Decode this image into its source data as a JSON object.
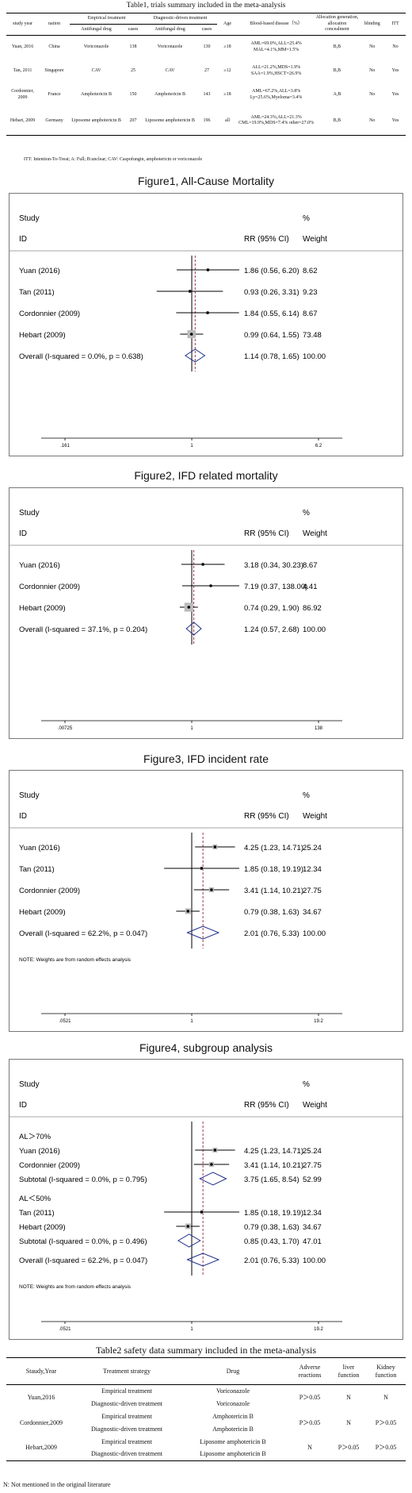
{
  "table1": {
    "title": "Table1, trials summary included in the meta-analysis",
    "headers": {
      "study_year": "study year",
      "nation": "nation",
      "empirical": "Empirical treatment",
      "diagnostic": "Diagnostic-driven treatment",
      "antifungal_drug": "Antifungal drug",
      "cases": "cases",
      "age": "Age",
      "blood": "Blood-based disease（%）",
      "allocation": "Allocation generation, allocation concealment",
      "blinding": "blinding",
      "itt": "ITT"
    },
    "rows": [
      {
        "study": "Yuan, 2016",
        "nation": "China",
        "emp_drug": "Voriconazole",
        "emp_cases": "138",
        "diag_drug": "Voriconazole",
        "diag_cases": "130",
        "age": "≥18",
        "blood": "AML=69.0%,ALL=25.4% MAL=4.1%,MM=1.5%",
        "alloc": "B,B",
        "blinding": "No",
        "itt": "No"
      },
      {
        "study": "Tan, 2011",
        "nation": "Singapore",
        "emp_drug": "CAV",
        "emp_cases": "25",
        "diag_drug": "CAV",
        "diag_cases": "27",
        "age": "≥12",
        "blood": "ALL=21.2%,MDS=1.9% SAA=1.9%,HSCT=26.9%",
        "alloc": "B,B",
        "blinding": "No",
        "itt": "Yes"
      },
      {
        "study": "Cordonnier, 2009",
        "nation": "France",
        "emp_drug": "Amphotericin B",
        "emp_cases": "150",
        "diag_drug": "Amphotericin B",
        "diag_cases": "143",
        "age": "≥18",
        "blood": "AML=67.2%,ALL=3.8% Ly=25.6%,Myeloma=3.4%",
        "alloc": "A,B",
        "blinding": "No",
        "itt": "Yes"
      },
      {
        "study": "Hebart, 2009",
        "nation": "Germany",
        "emp_drug": "Liposome amphotericin B",
        "emp_cases": "207",
        "diag_drug": "Liposome amphotericin B",
        "diag_cases": "196",
        "age": "all",
        "blood": "AML=24.3%,ALL=21.3% CML=19.9%,MDS=7.4% other=27.0%",
        "alloc": "B,B",
        "blinding": "No",
        "itt": "Yes"
      }
    ],
    "footnote": "ITT: Intention-To-Treat; A: Full; B:unclear; CAV: Caspofungin, amphotericin or voriconazole"
  },
  "figures": [
    {
      "caption": "Figure1, All-Cause Mortality",
      "col_study": "Study",
      "col_id": "ID",
      "col_rr": "RR (95% CI)",
      "col_pct": "%",
      "col_weight": "Weight",
      "axis": {
        "min": 0.161,
        "max": 6.2,
        "ticks": [
          ".161",
          "1",
          "6.2"
        ],
        "null": 1,
        "overall": 1.14
      },
      "note": "",
      "groups": [
        {
          "label": "",
          "rows": [
            {
              "study": "Yuan (2016)",
              "rr": 1.86,
              "lo": 0.56,
              "hi": 6.2,
              "text": "1.86 (0.56, 6.20)",
              "weight": "8.62"
            },
            {
              "study": "Tan (2011)",
              "rr": 0.93,
              "lo": 0.26,
              "hi": 3.31,
              "text": "0.93 (0.26, 3.31)",
              "weight": "9.23"
            },
            {
              "study": "Cordonnier (2009)",
              "rr": 1.84,
              "lo": 0.55,
              "hi": 6.14,
              "text": "1.84 (0.55, 6.14)",
              "weight": "8.67"
            },
            {
              "study": "Hebart (2009)",
              "rr": 0.99,
              "lo": 0.64,
              "hi": 1.55,
              "text": "0.99 (0.64, 1.55)",
              "weight": "73.48"
            }
          ],
          "subtotal": null
        }
      ],
      "overall": {
        "label": "Overall  (I-squared = 0.0%, p = 0.638)",
        "rr": 1.14,
        "lo": 0.78,
        "hi": 1.65,
        "text": "1.14 (0.78, 1.65)",
        "weight": "100.00"
      }
    },
    {
      "caption": "Figure2, IFD related mortality",
      "col_study": "Study",
      "col_id": "ID",
      "col_rr": "RR (95% CI)",
      "col_pct": "%",
      "col_weight": "Weight",
      "axis": {
        "min": 0.00725,
        "max": 138,
        "ticks": [
          ".00725",
          "1",
          "138"
        ],
        "null": 1,
        "overall": 1.24
      },
      "note": "",
      "groups": [
        {
          "label": "",
          "rows": [
            {
              "study": "Yuan (2016)",
              "rr": 3.18,
              "lo": 0.34,
              "hi": 30.23,
              "text": "3.18 (0.34, 30.23)",
              "weight": "8.67"
            },
            {
              "study": "Cordonnier (2009)",
              "rr": 7.19,
              "lo": 0.37,
              "hi": 138.0,
              "text": "7.19 (0.37, 138.00)",
              "weight": "4.41"
            },
            {
              "study": "Hebart (2009)",
              "rr": 0.74,
              "lo": 0.29,
              "hi": 1.9,
              "text": "0.74 (0.29, 1.90)",
              "weight": "86.92"
            }
          ],
          "subtotal": null
        }
      ],
      "overall": {
        "label": "Overall  (I-squared = 37.1%, p = 0.204)",
        "rr": 1.24,
        "lo": 0.57,
        "hi": 2.68,
        "text": "1.24 (0.57, 2.68)",
        "weight": "100.00"
      }
    },
    {
      "caption": "Figure3, IFD incident rate",
      "col_study": "Study",
      "col_id": "ID",
      "col_rr": "RR (95% CI)",
      "col_pct": "%",
      "col_weight": "Weight",
      "axis": {
        "min": 0.0521,
        "max": 19.2,
        "ticks": [
          ".0521",
          "1",
          "19.2"
        ],
        "null": 1,
        "overall": 2.01
      },
      "note": "NOTE: Weights are from random effects analysis",
      "groups": [
        {
          "label": "",
          "rows": [
            {
              "study": "Yuan (2016)",
              "rr": 4.25,
              "lo": 1.23,
              "hi": 14.71,
              "text": "4.25 (1.23, 14.71)",
              "weight": "25.24"
            },
            {
              "study": "Tan (2011)",
              "rr": 1.85,
              "lo": 0.18,
              "hi": 19.19,
              "text": "1.85 (0.18, 19.19)",
              "weight": "12.34"
            },
            {
              "study": "Cordonnier (2009)",
              "rr": 3.41,
              "lo": 1.14,
              "hi": 10.21,
              "text": "3.41 (1.14, 10.21)",
              "weight": "27.75"
            },
            {
              "study": "Hebart (2009)",
              "rr": 0.79,
              "lo": 0.38,
              "hi": 1.63,
              "text": "0.79 (0.38, 1.63)",
              "weight": "34.67"
            }
          ],
          "subtotal": null
        }
      ],
      "overall": {
        "label": "Overall  (I-squared = 62.2%, p = 0.047)",
        "rr": 2.01,
        "lo": 0.76,
        "hi": 5.33,
        "text": "2.01 (0.76, 5.33)",
        "weight": "100.00"
      }
    },
    {
      "caption": "Figure4, subgroup analysis",
      "col_study": "Study",
      "col_id": "ID",
      "col_rr": "RR (95% CI)",
      "col_pct": "%",
      "col_weight": "Weight",
      "axis": {
        "min": 0.0521,
        "max": 19.2,
        "ticks": [
          ".0521",
          "1",
          "19.2"
        ],
        "null": 1,
        "overall": 2.01
      },
      "note": "NOTE: Weights are from random effects analysis",
      "groups": [
        {
          "label": "AL＞70%",
          "rows": [
            {
              "study": "Yuan (2016)",
              "rr": 4.25,
              "lo": 1.23,
              "hi": 14.71,
              "text": "4.25 (1.23, 14.71)",
              "weight": "25.24"
            },
            {
              "study": "Cordonnier (2009)",
              "rr": 3.41,
              "lo": 1.14,
              "hi": 10.21,
              "text": "3.41 (1.14, 10.21)",
              "weight": "27.75"
            }
          ],
          "subtotal": {
            "label": "Subtotal  (I-squared = 0.0%, p = 0.795)",
            "rr": 3.75,
            "lo": 1.65,
            "hi": 8.54,
            "text": "3.75 (1.65, 8.54)",
            "weight": "52.99"
          }
        },
        {
          "label": "AL＜50%",
          "rows": [
            {
              "study": "Tan (2011)",
              "rr": 1.85,
              "lo": 0.18,
              "hi": 19.19,
              "text": "1.85 (0.18, 19.19)",
              "weight": "12.34"
            },
            {
              "study": "Hebart (2009)",
              "rr": 0.79,
              "lo": 0.38,
              "hi": 1.63,
              "text": "0.79 (0.38, 1.63)",
              "weight": "34.67"
            }
          ],
          "subtotal": {
            "label": "Subtotal  (I-squared = 0.0%, p = 0.496)",
            "rr": 0.85,
            "lo": 0.43,
            "hi": 1.7,
            "text": "0.85 (0.43, 1.70)",
            "weight": "47.01"
          }
        }
      ],
      "overall": {
        "label": "Overall  (I-squared = 62.2%, p = 0.047)",
        "rr": 2.01,
        "lo": 0.76,
        "hi": 5.33,
        "text": "2.01 (0.76, 5.33)",
        "weight": "100.00"
      }
    }
  ],
  "table2": {
    "title": "Table2 safety data summary included in the meta-analysis",
    "headers": {
      "study": "Staudy,Year",
      "strategy": "Treatment strategy",
      "drug": "Drug",
      "adverse": "Adverse reactions",
      "liver": "liver function",
      "kidney": "Kidney function"
    },
    "rows": [
      {
        "study": "Yuan,2016",
        "s1": "Empirical treatment",
        "s2": "Diagnostic-driven treatment",
        "d1": "Voriconazole",
        "d2": "Voriconazole",
        "adverse": "P＞0.05",
        "liver": "N",
        "kidney": "N"
      },
      {
        "study": "Cordonnier,2009",
        "s1": "Empirical treatment",
        "s2": "Diagnostic-driven treatment",
        "d1": "Amphotericin B",
        "d2": "Amphotericin B",
        "adverse": "P＞0.05",
        "liver": "N",
        "kidney": "P＞0.05"
      },
      {
        "study": "Hebart,2009",
        "s1": "Empirical treatment",
        "s2": "Diagnostic-driven treatment",
        "d1": "Liposome amphotericin B",
        "d2": "Liposome amphotericin B",
        "adverse": "N",
        "liver": "P＞0.05",
        "kidney": "P＞0.05"
      }
    ],
    "footnote": "N: Not mentioned in the original literature"
  },
  "chart_data": [
    {
      "type": "scatter",
      "title": "Figure1, All-Cause Mortality",
      "xlabel": "",
      "ylabel": "",
      "x_scale": "log",
      "xlim": [
        0.161,
        6.2
      ],
      "categories": [
        "Yuan (2016)",
        "Tan (2011)",
        "Cordonnier (2009)",
        "Hebart (2009)",
        "Overall"
      ],
      "values": [
        1.86,
        0.93,
        1.84,
        0.99,
        1.14
      ],
      "lower": [
        0.56,
        0.26,
        0.55,
        0.64,
        0.78
      ],
      "upper": [
        6.2,
        3.31,
        6.14,
        1.55,
        1.65
      ],
      "weights": [
        8.62,
        9.23,
        8.67,
        73.48,
        100.0
      ]
    },
    {
      "type": "scatter",
      "title": "Figure2, IFD related mortality",
      "xlabel": "",
      "ylabel": "",
      "x_scale": "log",
      "xlim": [
        0.00725,
        138
      ],
      "categories": [
        "Yuan (2016)",
        "Cordonnier (2009)",
        "Hebart (2009)",
        "Overall"
      ],
      "values": [
        3.18,
        7.19,
        0.74,
        1.24
      ],
      "lower": [
        0.34,
        0.37,
        0.29,
        0.57
      ],
      "upper": [
        30.23,
        138.0,
        1.9,
        2.68
      ],
      "weights": [
        8.67,
        4.41,
        86.92,
        100.0
      ]
    },
    {
      "type": "scatter",
      "title": "Figure3, IFD incident rate",
      "xlabel": "",
      "ylabel": "",
      "x_scale": "log",
      "xlim": [
        0.0521,
        19.2
      ],
      "categories": [
        "Yuan (2016)",
        "Tan (2011)",
        "Cordonnier (2009)",
        "Hebart (2009)",
        "Overall"
      ],
      "values": [
        4.25,
        1.85,
        3.41,
        0.79,
        2.01
      ],
      "lower": [
        1.23,
        0.18,
        1.14,
        0.38,
        0.76
      ],
      "upper": [
        14.71,
        19.19,
        10.21,
        1.63,
        5.33
      ],
      "weights": [
        25.24,
        12.34,
        27.75,
        34.67,
        100.0
      ]
    },
    {
      "type": "scatter",
      "title": "Figure4, subgroup analysis",
      "xlabel": "",
      "ylabel": "",
      "x_scale": "log",
      "xlim": [
        0.0521,
        19.2
      ],
      "categories": [
        "Yuan (2016)",
        "Cordonnier (2009)",
        "Subtotal AL＞70%",
        "Tan (2011)",
        "Hebart (2009)",
        "Subtotal AL＜50%",
        "Overall"
      ],
      "values": [
        4.25,
        3.41,
        3.75,
        1.85,
        0.79,
        0.85,
        2.01
      ],
      "lower": [
        1.23,
        1.14,
        1.65,
        0.18,
        0.38,
        0.43,
        0.76
      ],
      "upper": [
        14.71,
        10.21,
        8.54,
        19.19,
        1.63,
        1.7,
        5.33
      ],
      "weights": [
        25.24,
        27.75,
        52.99,
        12.34,
        34.67,
        47.01,
        100.0
      ]
    }
  ]
}
